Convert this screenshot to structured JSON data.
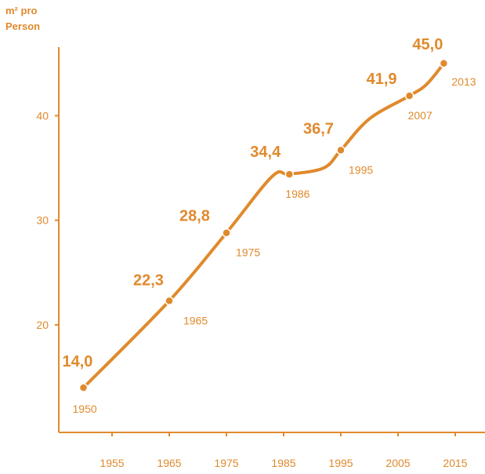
{
  "chart_data": {
    "type": "line",
    "ylabel_lines": [
      "m² pro",
      "Person"
    ],
    "xlabel": "",
    "xlim": [
      1945,
      2018
    ],
    "ylim": [
      10,
      47
    ],
    "x_ticks": [
      1955,
      1965,
      1975,
      1985,
      1995,
      2005,
      2015
    ],
    "y_ticks": [
      20,
      30,
      40
    ],
    "series": [
      {
        "x": [
          1950,
          1965,
          1975,
          1983,
          1986,
          1992,
          1995,
          2000,
          2007,
          2010,
          2013
        ],
        "y": [
          14.0,
          22.3,
          28.8,
          34.2,
          34.4,
          35.0,
          36.7,
          39.7,
          41.9,
          43.0,
          45.0
        ]
      }
    ],
    "points": [
      {
        "year": "1950",
        "value": "14,0",
        "x": 1950,
        "y": 14.0
      },
      {
        "year": "1965",
        "value": "22,3",
        "x": 1965,
        "y": 22.3
      },
      {
        "year": "1975",
        "value": "28,8",
        "x": 1975,
        "y": 28.8
      },
      {
        "year": "1986",
        "value": "34,4",
        "x": 1986,
        "y": 34.4
      },
      {
        "year": "1995",
        "value": "36,7",
        "x": 1995,
        "y": 36.7
      },
      {
        "year": "2007",
        "value": "41,9",
        "x": 2007,
        "y": 41.9
      },
      {
        "year": "2013",
        "value": "45,0",
        "x": 2013,
        "y": 45.0
      }
    ],
    "colors": {
      "accent": "#e08a2c"
    }
  }
}
